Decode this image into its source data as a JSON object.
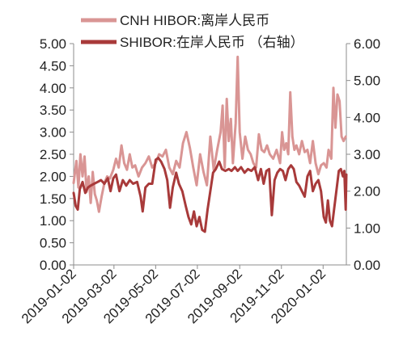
{
  "chart_data": {
    "type": "line",
    "x_labels": [
      "2019-01-02",
      "2019-03-02",
      "2019-05-02",
      "2019-07-02",
      "2019-09-02",
      "2019-11-02",
      "2020-01-02"
    ],
    "x_range": [
      "2019-01-02",
      "2020-02-05"
    ],
    "y_left": {
      "ticks": [
        "0.00",
        "0.50",
        "1.00",
        "1.50",
        "2.00",
        "2.50",
        "3.00",
        "3.50",
        "4.00",
        "4.50",
        "5.00"
      ],
      "ylim": [
        0,
        5
      ]
    },
    "y_right": {
      "ticks": [
        "0.00",
        "1.00",
        "2.00",
        "3.00",
        "4.00",
        "5.00",
        "6.00"
      ],
      "ylim": [
        0,
        6
      ]
    },
    "grid": false,
    "legend_position": "top",
    "series": [
      {
        "name": "CNH HIBOR:离岸人民币",
        "axis": "left",
        "color": "#d99594",
        "points": [
          [
            "2019-01-02",
            1.85
          ],
          [
            "2019-01-06",
            2.35
          ],
          [
            "2019-01-09",
            1.75
          ],
          [
            "2019-01-12",
            2.5
          ],
          [
            "2019-01-15",
            2.0
          ],
          [
            "2019-01-18",
            2.45
          ],
          [
            "2019-01-21",
            1.65
          ],
          [
            "2019-01-24",
            2.0
          ],
          [
            "2019-01-27",
            1.4
          ],
          [
            "2019-01-30",
            2.1
          ],
          [
            "2019-02-02",
            1.6
          ],
          [
            "2019-02-05",
            1.45
          ],
          [
            "2019-02-08",
            1.2
          ],
          [
            "2019-02-12",
            1.55
          ],
          [
            "2019-02-16",
            1.85
          ],
          [
            "2019-02-20",
            2.0
          ],
          [
            "2019-02-24",
            1.95
          ],
          [
            "2019-03-01",
            2.15
          ],
          [
            "2019-03-05",
            2.4
          ],
          [
            "2019-03-09",
            2.2
          ],
          [
            "2019-03-13",
            2.7
          ],
          [
            "2019-03-17",
            2.3
          ],
          [
            "2019-03-21",
            2.15
          ],
          [
            "2019-03-25",
            2.5
          ],
          [
            "2019-03-29",
            2.2
          ],
          [
            "2019-04-02",
            2.25
          ],
          [
            "2019-04-07",
            2.0
          ],
          [
            "2019-04-12",
            2.2
          ],
          [
            "2019-04-17",
            2.3
          ],
          [
            "2019-04-22",
            2.45
          ],
          [
            "2019-04-27",
            2.2
          ],
          [
            "2019-05-02",
            2.3
          ],
          [
            "2019-05-07",
            2.5
          ],
          [
            "2019-05-12",
            2.45
          ],
          [
            "2019-05-17",
            2.6
          ],
          [
            "2019-05-22",
            2.2
          ],
          [
            "2019-05-27",
            2.05
          ],
          [
            "2019-06-01",
            2.35
          ],
          [
            "2019-06-06",
            2.2
          ],
          [
            "2019-06-11",
            2.75
          ],
          [
            "2019-06-16",
            3.0
          ],
          [
            "2019-06-21",
            2.65
          ],
          [
            "2019-06-26",
            2.2
          ],
          [
            "2019-07-01",
            1.8
          ],
          [
            "2019-07-06",
            2.5
          ],
          [
            "2019-07-11",
            2.1
          ],
          [
            "2019-07-16",
            1.8
          ],
          [
            "2019-07-21",
            2.9
          ],
          [
            "2019-07-26",
            2.15
          ],
          [
            "2019-07-31",
            2.6
          ],
          [
            "2019-08-05",
            3.0
          ],
          [
            "2019-08-08",
            3.6
          ],
          [
            "2019-08-11",
            2.2
          ],
          [
            "2019-08-14",
            3.75
          ],
          [
            "2019-08-17",
            2.8
          ],
          [
            "2019-08-20",
            3.3
          ],
          [
            "2019-08-23",
            2.3
          ],
          [
            "2019-08-27",
            3.2
          ],
          [
            "2019-08-30",
            4.7
          ],
          [
            "2019-09-02",
            3.0
          ],
          [
            "2019-09-06",
            2.4
          ],
          [
            "2019-09-10",
            2.9
          ],
          [
            "2019-09-14",
            2.6
          ],
          [
            "2019-09-18",
            2.5
          ],
          [
            "2019-09-22",
            2.3
          ],
          [
            "2019-09-26",
            2.2
          ],
          [
            "2019-09-30",
            2.95
          ],
          [
            "2019-10-04",
            2.6
          ],
          [
            "2019-10-08",
            2.55
          ],
          [
            "2019-10-12",
            2.7
          ],
          [
            "2019-10-16",
            2.5
          ],
          [
            "2019-10-21",
            2.4
          ],
          [
            "2019-10-26",
            2.6
          ],
          [
            "2019-10-31",
            2.3
          ],
          [
            "2019-11-03",
            3.0
          ],
          [
            "2019-11-06",
            2.6
          ],
          [
            "2019-11-09",
            2.75
          ],
          [
            "2019-11-12",
            2.5
          ],
          [
            "2019-11-15",
            3.9
          ],
          [
            "2019-11-18",
            2.9
          ],
          [
            "2019-11-21",
            2.6
          ],
          [
            "2019-11-24",
            2.7
          ],
          [
            "2019-11-28",
            2.5
          ],
          [
            "2019-12-02",
            2.8
          ],
          [
            "2019-12-06",
            2.55
          ],
          [
            "2019-12-10",
            2.6
          ],
          [
            "2019-12-14",
            2.3
          ],
          [
            "2019-12-18",
            2.8
          ],
          [
            "2019-12-22",
            2.3
          ],
          [
            "2019-12-26",
            2.05
          ],
          [
            "2019-12-30",
            2.25
          ],
          [
            "2020-01-03",
            2.3
          ],
          [
            "2020-01-07",
            2.2
          ],
          [
            "2020-01-10",
            2.6
          ],
          [
            "2020-01-14",
            2.4
          ],
          [
            "2020-01-17",
            4.0
          ],
          [
            "2020-01-20",
            3.1
          ],
          [
            "2020-01-23",
            3.85
          ],
          [
            "2020-01-26",
            3.7
          ],
          [
            "2020-01-29",
            2.9
          ],
          [
            "2020-02-01",
            2.8
          ],
          [
            "2020-02-04",
            2.9
          ]
        ]
      },
      {
        "name": "SHIBOR:在岸人民币 （右轴）",
        "axis": "right",
        "color": "#a83a3a",
        "points": [
          [
            "2019-01-02",
            1.95
          ],
          [
            "2019-01-05",
            1.6
          ],
          [
            "2019-01-08",
            1.5
          ],
          [
            "2019-01-11",
            2.05
          ],
          [
            "2019-01-15",
            2.25
          ],
          [
            "2019-01-19",
            1.95
          ],
          [
            "2019-01-23",
            2.1
          ],
          [
            "2019-01-27",
            2.15
          ],
          [
            "2019-02-01",
            2.2
          ],
          [
            "2019-02-06",
            2.25
          ],
          [
            "2019-02-11",
            2.3
          ],
          [
            "2019-02-16",
            2.2
          ],
          [
            "2019-02-21",
            2.35
          ],
          [
            "2019-02-25",
            2.0
          ],
          [
            "2019-03-01",
            2.35
          ],
          [
            "2019-03-05",
            2.45
          ],
          [
            "2019-03-10",
            2.0
          ],
          [
            "2019-03-15",
            2.3
          ],
          [
            "2019-03-20",
            2.15
          ],
          [
            "2019-03-25",
            2.3
          ],
          [
            "2019-03-30",
            2.2
          ],
          [
            "2019-04-05",
            2.25
          ],
          [
            "2019-04-10",
            1.85
          ],
          [
            "2019-04-13",
            1.45
          ],
          [
            "2019-04-17",
            2.1
          ],
          [
            "2019-04-22",
            2.2
          ],
          [
            "2019-04-27",
            2.2
          ],
          [
            "2019-05-02",
            2.85
          ],
          [
            "2019-05-06",
            2.9
          ],
          [
            "2019-05-10",
            2.8
          ],
          [
            "2019-05-15",
            2.6
          ],
          [
            "2019-05-19",
            2.3
          ],
          [
            "2019-05-23",
            1.55
          ],
          [
            "2019-05-27",
            2.1
          ],
          [
            "2019-06-01",
            2.5
          ],
          [
            "2019-06-05",
            2.2
          ],
          [
            "2019-06-10",
            2.0
          ],
          [
            "2019-06-15",
            1.6
          ],
          [
            "2019-06-19",
            1.3
          ],
          [
            "2019-06-23",
            1.1
          ],
          [
            "2019-06-27",
            1.45
          ],
          [
            "2019-07-01",
            1.05
          ],
          [
            "2019-07-05",
            1.3
          ],
          [
            "2019-07-09",
            0.95
          ],
          [
            "2019-07-13",
            0.9
          ],
          [
            "2019-07-17",
            1.5
          ],
          [
            "2019-07-21",
            2.0
          ],
          [
            "2019-07-25",
            2.5
          ],
          [
            "2019-07-29",
            2.6
          ],
          [
            "2019-08-03",
            2.8
          ],
          [
            "2019-08-07",
            2.6
          ],
          [
            "2019-08-12",
            2.55
          ],
          [
            "2019-08-17",
            2.6
          ],
          [
            "2019-08-21",
            2.55
          ],
          [
            "2019-08-26",
            2.65
          ],
          [
            "2019-08-30",
            2.55
          ],
          [
            "2019-09-04",
            2.65
          ],
          [
            "2019-09-09",
            2.5
          ],
          [
            "2019-09-14",
            2.6
          ],
          [
            "2019-09-19",
            2.55
          ],
          [
            "2019-09-24",
            2.65
          ],
          [
            "2019-09-29",
            2.3
          ],
          [
            "2019-10-03",
            2.6
          ],
          [
            "2019-10-07",
            2.2
          ],
          [
            "2019-10-11",
            2.55
          ],
          [
            "2019-10-15",
            2.6
          ],
          [
            "2019-10-19",
            1.35
          ],
          [
            "2019-10-23",
            2.3
          ],
          [
            "2019-10-27",
            2.5
          ],
          [
            "2019-10-31",
            2.6
          ],
          [
            "2019-11-04",
            2.55
          ],
          [
            "2019-11-08",
            2.3
          ],
          [
            "2019-11-12",
            2.6
          ],
          [
            "2019-11-16",
            2.7
          ],
          [
            "2019-11-20",
            2.6
          ],
          [
            "2019-11-24",
            2.25
          ],
          [
            "2019-11-28",
            2.15
          ],
          [
            "2019-12-02",
            2.0
          ],
          [
            "2019-12-06",
            1.85
          ],
          [
            "2019-12-10",
            2.4
          ],
          [
            "2019-12-14",
            2.55
          ],
          [
            "2019-12-18",
            2.0
          ],
          [
            "2019-12-22",
            2.2
          ],
          [
            "2019-12-26",
            2.3
          ],
          [
            "2019-12-30",
            2.0
          ],
          [
            "2020-01-03",
            1.3
          ],
          [
            "2020-01-06",
            1.15
          ],
          [
            "2020-01-09",
            1.75
          ],
          [
            "2020-01-12",
            1.2
          ],
          [
            "2020-01-15",
            1.05
          ],
          [
            "2020-01-18",
            1.5
          ],
          [
            "2020-01-22",
            2.1
          ],
          [
            "2020-01-25",
            2.55
          ],
          [
            "2020-01-28",
            2.6
          ],
          [
            "2020-01-31",
            2.4
          ],
          [
            "2020-02-02",
            2.55
          ],
          [
            "2020-02-04",
            1.5
          ],
          [
            "2020-02-05",
            2.45
          ]
        ]
      }
    ]
  },
  "colors": {
    "axis": "#8c8c8c",
    "text": "#222222"
  }
}
